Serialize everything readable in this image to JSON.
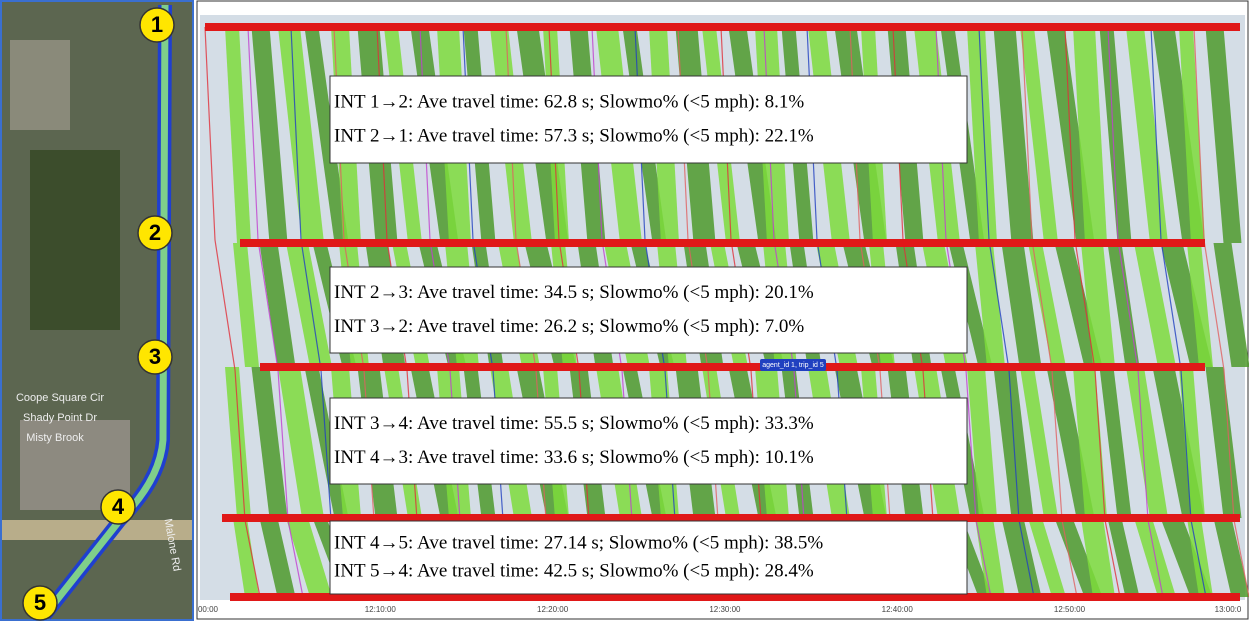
{
  "map": {
    "markers": [
      "1",
      "2",
      "3",
      "4",
      "5"
    ],
    "street_labels": [
      "Coope Square Cir",
      "Shady Point Dr",
      "Misty Brook",
      "Malone Rd"
    ]
  },
  "diagram": {
    "annotations": [
      [
        "INT 1→2: Ave travel time: 62.8 s; Slowmo% (<5 mph): 8.1%",
        "INT 2→1: Ave travel time:  57.3 s; Slowmo% (<5 mph): 22.1%"
      ],
      [
        "INT 2→3: Ave travel time: 34.5 s; Slowmo% (<5 mph): 20.1%",
        "INT 3→2: Ave travel time: 26.2 s; Slowmo% (<5 mph): 7.0%"
      ],
      [
        "INT 3→4: Ave travel time: 55.5 s; Slowmo% (<5 mph): 33.3%",
        "INT 4→3: Ave travel time:  33.6 s; Slowmo% (<5 mph): 10.1%"
      ],
      [
        "INT 4→5: Ave travel time: 27.14 s; Slowmo% (<5 mph): 38.5%",
        "INT 5→4: Ave travel time:  42.5 s; Slowmo% (<5 mph): 28.4%"
      ]
    ],
    "tooltip": "agent_id 1, trip_id 5",
    "time_ticks": [
      "00:00",
      "12:10:00",
      "12:20:00",
      "12:30:00",
      "12:40:00",
      "12:50:00",
      "13:00:0"
    ]
  }
}
